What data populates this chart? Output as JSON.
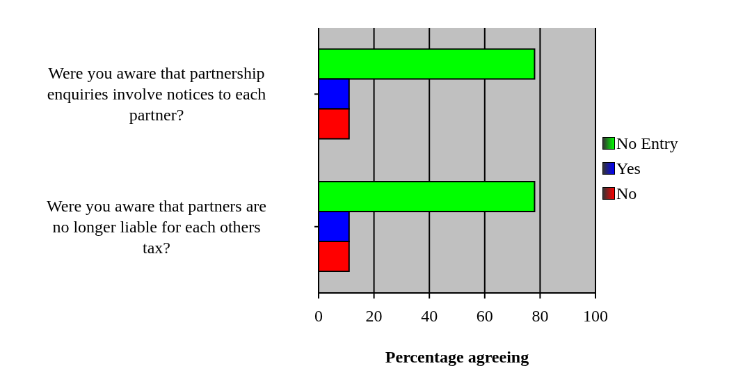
{
  "chart_data": {
    "type": "bar",
    "orientation": "horizontal",
    "xlabel": "Percentage agreeing",
    "categories": [
      "Were you aware that partnership enquiries involve notices to each partner?",
      "Were you aware that partners are no longer liable for each others tax?"
    ],
    "series": [
      {
        "name": "No Entry",
        "color": "#00ff00",
        "values": [
          78,
          78
        ]
      },
      {
        "name": "Yes",
        "color": "#0000ff",
        "values": [
          11,
          11
        ]
      },
      {
        "name": "No",
        "color": "#ff0000",
        "values": [
          11,
          11
        ]
      }
    ],
    "xlim": [
      0,
      100
    ],
    "xticks": [
      0,
      20,
      40,
      60,
      80,
      100
    ],
    "grid": "x",
    "legend": "right"
  }
}
